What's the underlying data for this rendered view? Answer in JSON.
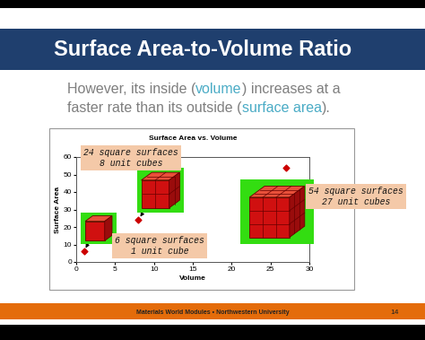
{
  "slide": {
    "title": "Surface Area-to-Volume Ratio",
    "text": [
      [
        {
          "text": "However, its inside (",
          "color": "#7f7f7f"
        },
        {
          "text": "volume",
          "color": "#4bacc6"
        },
        {
          "text": ") increases at a",
          "color": "#7f7f7f"
        }
      ],
      [
        {
          "text": "faster rate than its outside (",
          "color": "#7f7f7f"
        },
        {
          "text": "surface area",
          "color": "#4bacc6"
        },
        {
          "text": ").",
          "color": "#7f7f7f"
        }
      ]
    ],
    "footer": "Materials World Modules • Northwestern University",
    "page": 14
  },
  "chart_data": {
    "type": "scatter",
    "title": "Surface Area vs. Volume",
    "x_label": "Volume",
    "y_label": "Surface Area",
    "x": [
      1,
      8,
      27
    ],
    "values": [
      6,
      24,
      54
    ],
    "color": "#cc0000",
    "marker": "diamond",
    "xlim": [
      0,
      30
    ],
    "xticks": [
      0,
      5,
      10,
      15,
      20,
      25,
      30
    ],
    "ylim": [
      0,
      60
    ],
    "yticks": [
      0,
      10,
      20,
      30,
      40,
      50,
      60
    ],
    "annotations": [
      "6 square surfaces\n1 unit cube",
      "24 square surfaces\n8 unit cubes",
      "54 square surfaces\n27 unit cubes"
    ]
  }
}
